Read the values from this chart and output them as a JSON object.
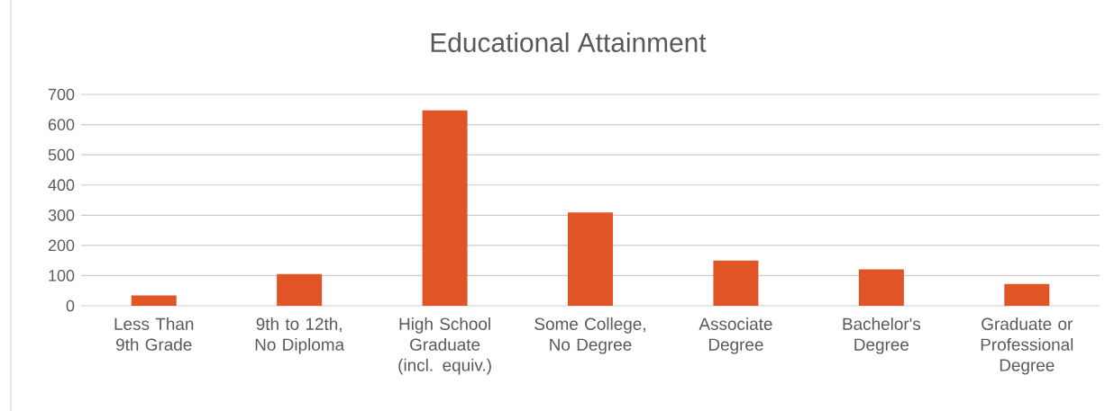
{
  "chart_data": {
    "type": "bar",
    "title": "Educational Attainment",
    "categories": [
      "Less Than 9th Grade",
      "9th to 12th, No Diploma",
      "High School Graduate (incl. equiv.)",
      "Some College, No Degree",
      "Associate Degree",
      "Bachelor's Degree",
      "Graduate or Professional Degree"
    ],
    "values": [
      34,
      105,
      647,
      309,
      150,
      121,
      72
    ],
    "color": "#e05426",
    "ylim": [
      0,
      700
    ],
    "yticks": [
      0,
      100,
      200,
      300,
      400,
      500,
      600,
      700
    ],
    "grid": "y"
  }
}
